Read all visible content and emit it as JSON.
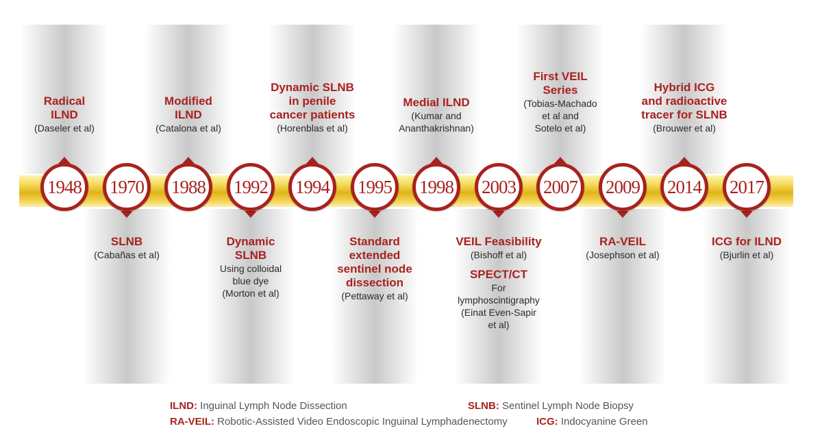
{
  "milestones": [
    {
      "year": "1948",
      "pos": "up",
      "title": "Radical\nILND",
      "detail": "(Daseler et al)"
    },
    {
      "year": "1970",
      "pos": "down",
      "title": "SLNB",
      "detail": "(Cabañas et al)"
    },
    {
      "year": "1988",
      "pos": "up",
      "title": "Modified\nILND",
      "detail": "(Catalona et al)"
    },
    {
      "year": "1992",
      "pos": "down",
      "title": "Dynamic\nSLNB",
      "detail": "Using colloidal\nblue dye\n(Morton et al)"
    },
    {
      "year": "1994",
      "pos": "up",
      "title": "Dynamic SLNB\nin penile\ncancer patients",
      "detail": "(Horenblas et al)"
    },
    {
      "year": "1995",
      "pos": "down",
      "title": "Standard\nextended\nsentinel node\ndissection",
      "detail": "(Pettaway et al)"
    },
    {
      "year": "1998",
      "pos": "up",
      "title": "Medial ILND",
      "detail": "(Kumar and\nAnanthakrishnan)"
    },
    {
      "year": "2003",
      "pos": "down",
      "title": "VEIL Feasibility",
      "detail": "(Bishoff et al)",
      "title2": "SPECT/CT",
      "detail2": "For\nlymphoscintigraphy\n(Einat Even-Sapir\net al)"
    },
    {
      "year": "2007",
      "pos": "up",
      "title": "First VEIL Series",
      "detail": "(Tobias-Machado\net al and\nSotelo et al)"
    },
    {
      "year": "2009",
      "pos": "down",
      "title": "RA-VEIL",
      "detail": "(Josephson et al)"
    },
    {
      "year": "2014",
      "pos": "up",
      "title": "Hybrid ICG\nand radioactive\ntracer for SLNB",
      "detail": "(Brouwer et al)"
    },
    {
      "year": "2017",
      "pos": "down",
      "title": "ICG for ILND",
      "detail": "(Bjurlin et al)"
    }
  ],
  "legend": [
    {
      "abbr": "ILND:",
      "text": "Inguinal Lymph Node Dissection"
    },
    {
      "abbr": "SLNB:",
      "text": "Sentinel Lymph Node Biopsy"
    },
    {
      "abbr": "RA-VEIL:",
      "text": "Robotic-Assisted Video Endoscopic Inguinal Lymphadenectomy"
    },
    {
      "abbr": "ICG:",
      "text": "Indocyanine Green"
    }
  ],
  "colors": {
    "accent": "#a8221f",
    "band": "#f1cc3a",
    "column": "#c9c9c9"
  }
}
